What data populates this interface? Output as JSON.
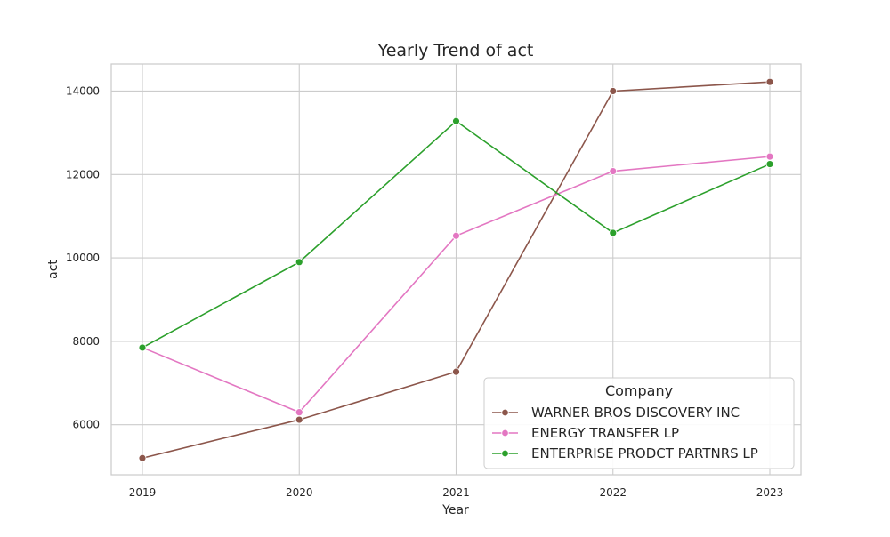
{
  "chart_data": {
    "type": "line",
    "title": "Yearly Trend of act",
    "xlabel": "Year",
    "ylabel": "act",
    "x": [
      "2019",
      "2020",
      "2021",
      "2022",
      "2023"
    ],
    "yticks": [
      "6000",
      "8000",
      "10000",
      "12000",
      "14000"
    ],
    "ylim": [
      4800,
      14650
    ],
    "grid": true,
    "legend": {
      "title": "Company",
      "placement": "lower-right"
    },
    "series": [
      {
        "name": "WARNER BROS DISCOVERY INC",
        "color": "#8c564b",
        "values": [
          5200,
          6120,
          7270,
          14000,
          14220
        ]
      },
      {
        "name": "ENERGY TRANSFER LP",
        "color": "#e377c2",
        "values": [
          7850,
          6300,
          10530,
          12080,
          12430
        ]
      },
      {
        "name": "ENTERPRISE PRODCT PARTNRS LP",
        "color": "#2ca02c",
        "values": [
          7850,
          9900,
          13280,
          10600,
          12250
        ]
      }
    ]
  }
}
